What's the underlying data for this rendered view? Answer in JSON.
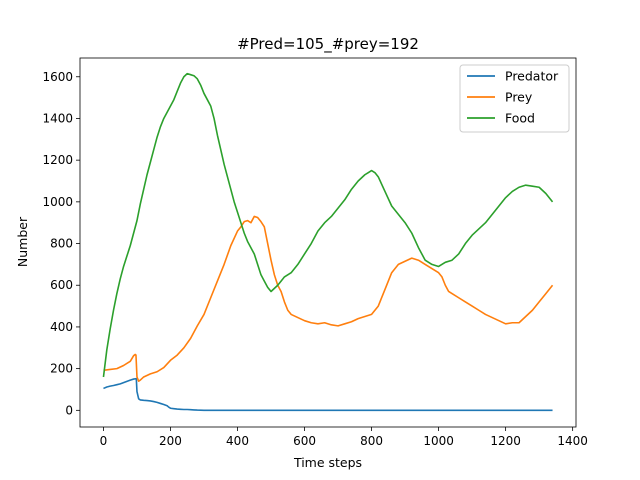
{
  "chart_data": {
    "type": "line",
    "title": "#Pred=105_#prey=192",
    "xlabel": "Time steps",
    "ylabel": "Number",
    "xlim": [
      -70,
      1410
    ],
    "ylim": [
      -80,
      1690
    ],
    "xticks": [
      0,
      200,
      400,
      600,
      800,
      1000,
      1200,
      1400
    ],
    "yticks": [
      0,
      200,
      400,
      600,
      800,
      1000,
      1200,
      1400,
      1600
    ],
    "grid": false,
    "legend": "top-right",
    "series": [
      {
        "name": "Predator",
        "color": "#1f77b4",
        "x": [
          0,
          10,
          20,
          30,
          40,
          50,
          60,
          70,
          80,
          90,
          98,
          100,
          105,
          110,
          120,
          130,
          140,
          150,
          160,
          170,
          180,
          190,
          195,
          200,
          210,
          220,
          230,
          240,
          250,
          260,
          270,
          280,
          300,
          400,
          600,
          800,
          1000,
          1200,
          1340
        ],
        "y": [
          105,
          112,
          116,
          119,
          123,
          127,
          133,
          139,
          145,
          150,
          152,
          90,
          55,
          50,
          48,
          47,
          45,
          42,
          38,
          33,
          28,
          22,
          15,
          10,
          8,
          6,
          5,
          4,
          4,
          3,
          2,
          1,
          0,
          0,
          0,
          0,
          0,
          0,
          0
        ]
      },
      {
        "name": "Prey",
        "color": "#ff7f0e",
        "x": [
          0,
          20,
          40,
          60,
          80,
          90,
          95,
          97,
          100,
          105,
          110,
          120,
          140,
          160,
          180,
          200,
          220,
          240,
          260,
          280,
          300,
          320,
          340,
          360,
          380,
          400,
          410,
          420,
          430,
          440,
          450,
          460,
          470,
          480,
          490,
          500,
          510,
          520,
          530,
          540,
          550,
          560,
          580,
          600,
          620,
          640,
          660,
          680,
          700,
          720,
          740,
          760,
          780,
          800,
          820,
          840,
          860,
          880,
          900,
          920,
          940,
          960,
          980,
          1000,
          1010,
          1020,
          1030,
          1040,
          1060,
          1080,
          1100,
          1120,
          1140,
          1160,
          1180,
          1200,
          1220,
          1240,
          1260,
          1280,
          1300,
          1320,
          1340
        ],
        "y": [
          192,
          196,
          200,
          215,
          235,
          262,
          268,
          265,
          160,
          140,
          145,
          160,
          175,
          185,
          205,
          240,
          265,
          300,
          345,
          405,
          460,
          540,
          620,
          700,
          790,
          860,
          880,
          905,
          910,
          900,
          930,
          925,
          905,
          880,
          800,
          720,
          650,
          600,
          570,
          520,
          480,
          460,
          445,
          430,
          420,
          415,
          420,
          410,
          405,
          415,
          425,
          440,
          450,
          460,
          500,
          580,
          660,
          700,
          715,
          730,
          720,
          700,
          680,
          660,
          640,
          600,
          570,
          560,
          540,
          520,
          500,
          480,
          460,
          445,
          430,
          415,
          420,
          420,
          450,
          480,
          520,
          560,
          600
        ]
      },
      {
        "name": "Food",
        "color": "#2ca02c",
        "x": [
          0,
          10,
          20,
          30,
          40,
          50,
          60,
          70,
          80,
          90,
          100,
          110,
          120,
          130,
          140,
          150,
          160,
          170,
          180,
          190,
          200,
          210,
          220,
          230,
          240,
          250,
          260,
          270,
          280,
          290,
          300,
          310,
          320,
          330,
          340,
          350,
          360,
          370,
          380,
          390,
          400,
          410,
          420,
          430,
          440,
          450,
          460,
          470,
          480,
          490,
          500,
          510,
          520,
          530,
          540,
          560,
          580,
          600,
          620,
          640,
          660,
          680,
          700,
          720,
          740,
          760,
          780,
          790,
          800,
          810,
          820,
          840,
          860,
          880,
          900,
          920,
          940,
          960,
          980,
          1000,
          1020,
          1040,
          1060,
          1080,
          1100,
          1120,
          1140,
          1160,
          1180,
          1200,
          1220,
          1240,
          1260,
          1280,
          1300,
          1320,
          1340
        ],
        "y": [
          160,
          290,
          390,
          480,
          560,
          630,
          690,
          740,
          790,
          850,
          910,
          990,
          1060,
          1130,
          1190,
          1250,
          1310,
          1360,
          1400,
          1430,
          1460,
          1490,
          1530,
          1570,
          1600,
          1615,
          1610,
          1605,
          1590,
          1560,
          1520,
          1490,
          1460,
          1400,
          1320,
          1250,
          1180,
          1120,
          1060,
          1000,
          950,
          900,
          850,
          810,
          780,
          750,
          700,
          650,
          620,
          590,
          570,
          585,
          600,
          620,
          640,
          660,
          700,
          750,
          800,
          860,
          900,
          930,
          970,
          1010,
          1060,
          1100,
          1130,
          1140,
          1150,
          1140,
          1120,
          1050,
          980,
          940,
          900,
          850,
          780,
          720,
          700,
          690,
          710,
          720,
          750,
          800,
          840,
          870,
          900,
          940,
          980,
          1020,
          1050,
          1070,
          1080,
          1075,
          1070,
          1040,
          1000
        ]
      }
    ]
  }
}
